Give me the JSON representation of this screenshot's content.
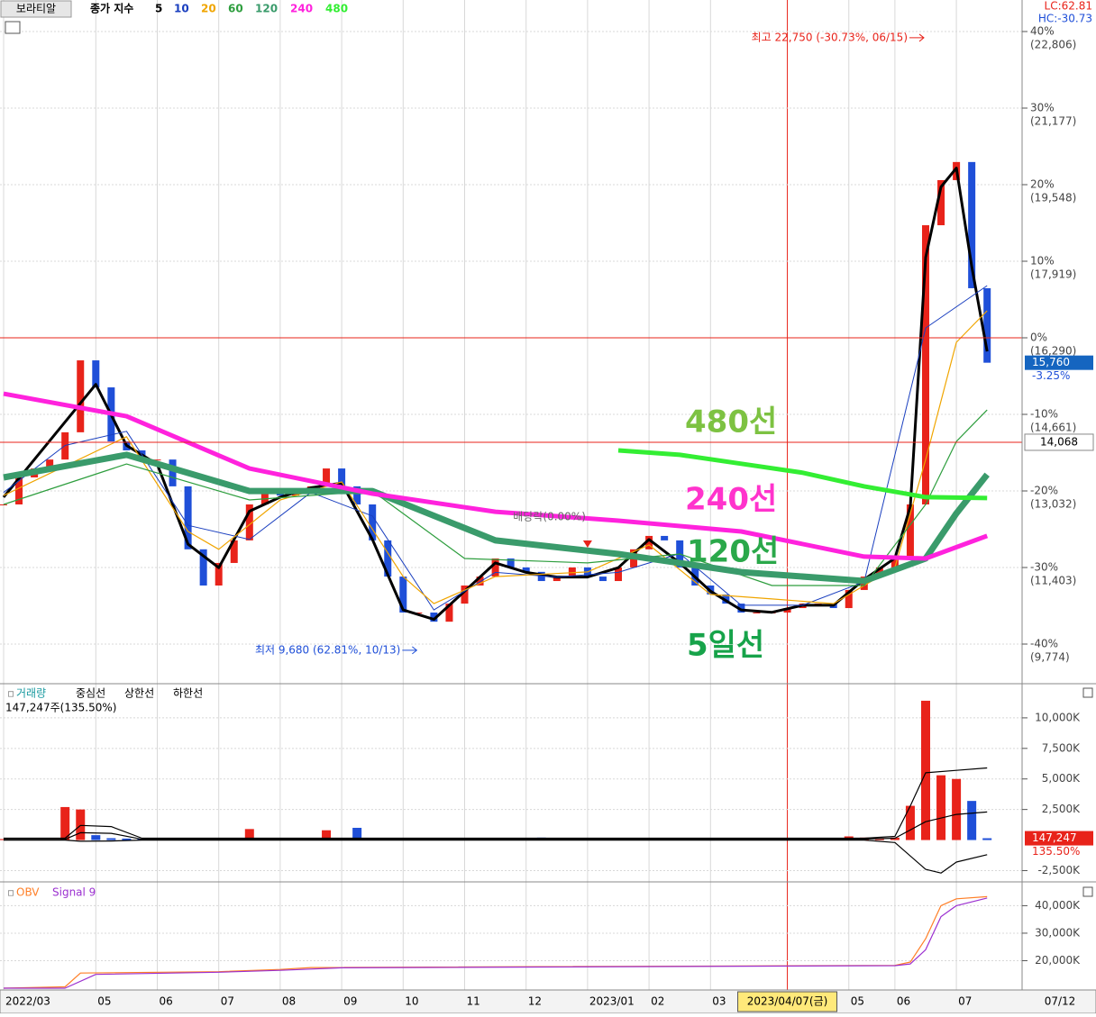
{
  "header": {
    "tool_button": "보라티알",
    "legend_prefix": "종가 지수",
    "lc": "LC:62.81",
    "hc": "HC:-30.73"
  },
  "chart_data": [
    {
      "type": "candlestick",
      "close": [
        12745,
        13320,
        13510,
        13700,
        14280,
        15810,
        15235,
        14085,
        13895,
        13700,
        13700,
        13130,
        11790,
        11020,
        11500,
        11980,
        12745,
        13030,
        12935,
        13030,
        13130,
        13510,
        13130,
        12745,
        11980,
        11210,
        10445,
        10445,
        10250,
        10635,
        11020,
        11210,
        11595,
        11405,
        11310,
        11115,
        11210,
        11405,
        11210,
        11115,
        11405,
        11790,
        12075,
        11980,
        11405,
        11020,
        10830,
        10635,
        10445,
        10445,
        10445,
        10540,
        10635,
        10635,
        10540,
        10925,
        11210,
        11405,
        11595,
        12745,
        18685,
        19645,
        20030,
        17345,
        15760
      ],
      "color_up": "#e8231a",
      "color_down": "#1f4fd8",
      "categories": [
        "2022/03",
        null,
        null,
        null,
        null,
        null,
        "05",
        null,
        null,
        null,
        "06",
        null,
        null,
        null,
        "07",
        null,
        null,
        null,
        "08",
        null,
        null,
        null,
        "09",
        null,
        null,
        null,
        "10",
        null,
        null,
        null,
        "11",
        null,
        null,
        null,
        "12",
        null,
        null,
        null,
        "2023/01",
        null,
        null,
        null,
        "02",
        null,
        null,
        null,
        "03",
        null,
        null,
        null,
        null,
        "2023/04/07(금)",
        null,
        null,
        null,
        "05",
        null,
        null,
        "06",
        null,
        null,
        null,
        "07",
        null,
        null
      ],
      "right_date": "07/12",
      "crosshair_x": 51,
      "series": [
        {
          "name": "5",
          "color": "#000000",
          "x": [
            0,
            4,
            6,
            8,
            10,
            12,
            14,
            16,
            18,
            20,
            22,
            24,
            26,
            28,
            30,
            32,
            34,
            36,
            38,
            40,
            42,
            44,
            46,
            48,
            50,
            52,
            54,
            56,
            58,
            59,
            60,
            61,
            62,
            63,
            64
          ],
          "values": [
            12900,
            14500,
            15300,
            14000,
            13600,
            11900,
            11400,
            12600,
            12900,
            13100,
            13200,
            12000,
            10500,
            10300,
            10900,
            11500,
            11300,
            11200,
            11200,
            11400,
            12000,
            11500,
            10900,
            10500,
            10450,
            10600,
            10600,
            11150,
            11600,
            12700,
            18000,
            19500,
            19900,
            17800,
            16000
          ]
        },
        {
          "name": "10",
          "color": "#1a3fbf",
          "x": [
            0,
            4,
            8,
            12,
            16,
            20,
            24,
            28,
            32,
            36,
            40,
            44,
            48,
            52,
            56,
            60,
            64
          ],
          "values": [
            13000,
            14000,
            14300,
            12300,
            12000,
            13000,
            12500,
            10500,
            11300,
            11200,
            11300,
            11700,
            10600,
            10600,
            11100,
            16500,
            17400
          ]
        },
        {
          "name": "20",
          "color": "#f0a500",
          "x": [
            0,
            8,
            12,
            14,
            18,
            22,
            26,
            28,
            32,
            38,
            42,
            46,
            50,
            54,
            58,
            60,
            62,
            64
          ],
          "values": [
            12935,
            14185,
            12170,
            11790,
            12840,
            13225,
            11210,
            10635,
            11210,
            11310,
            11885,
            10830,
            10735,
            10635,
            11405,
            13700,
            16195,
            16865
          ]
        },
        {
          "name": "60",
          "color": "#2e9e3e",
          "x": [
            0,
            8,
            16,
            24,
            30,
            38,
            44,
            50,
            56,
            60,
            62,
            64
          ],
          "values": [
            12745,
            13605,
            12840,
            13030,
            11595,
            11500,
            11690,
            11020,
            11020,
            12745,
            14085,
            14755
          ]
        },
        {
          "name": "120",
          "color": "#3a9b6b",
          "x": [
            0,
            8,
            16,
            24,
            32,
            40,
            48,
            56,
            60,
            62,
            64
          ],
          "values": [
            13320,
            13800,
            13030,
            13030,
            11980,
            11690,
            11305,
            11115,
            11595,
            12555,
            13380
          ]
        },
        {
          "name": "240",
          "color": "#ff22dd",
          "x": [
            0,
            8,
            16,
            24,
            32,
            40,
            48,
            56,
            60,
            64
          ],
          "values": [
            15100,
            14620,
            13510,
            12975,
            12590,
            12400,
            12170,
            11635,
            11595,
            12075
          ]
        },
        {
          "name": "480",
          "color": "#33ee33",
          "x": [
            40,
            44,
            48,
            52,
            56,
            60,
            64
          ],
          "values": [
            13895,
            13800,
            13610,
            13420,
            13130,
            12900,
            12880
          ]
        }
      ],
      "ylim": [
        8950,
        23477
      ],
      "yticks": [
        {
          "value": 22806,
          "label": "(22,806)"
        },
        {
          "value": 21177,
          "label": "(21,177)"
        },
        {
          "value": 19548,
          "label": "(19,548)"
        },
        {
          "value": 17919,
          "label": "(17,919)"
        },
        {
          "value": 16290,
          "label": "(16,290)"
        },
        {
          "value": 14661,
          "label": "(14,661)"
        },
        {
          "value": 13032,
          "label": "(13,032)"
        },
        {
          "value": 11403,
          "label": "(11,403)"
        },
        {
          "value": 9774,
          "label": "(9,774)"
        }
      ],
      "ytick_pct": [
        "40%",
        "30%",
        "20%",
        "10%",
        "0%",
        "-10%",
        "-20%",
        "-30%",
        "-40%"
      ],
      "hline": {
        "value": 14068,
        "label": "14,068"
      },
      "last": {
        "value": 15760,
        "label": "15,760",
        "change": "-3.25%"
      },
      "high": {
        "x": 60,
        "value": 22750,
        "label": "최고 22,750 (-30.73%, 06/15)"
      },
      "low": {
        "x": 27,
        "value": 9680,
        "label": "최저 9,680 (62.81%, 10/13)"
      },
      "dividend": {
        "x": 38,
        "label": "배당락(0.00%)"
      },
      "annotations": [
        "480선",
        "240선",
        "120선",
        "5일선"
      ]
    },
    {
      "type": "bar",
      "name": "거래량",
      "summary": "147,247주(135.50%)",
      "values": [
        80000,
        60000,
        50000,
        70000,
        2700000,
        2500000,
        400000,
        150000,
        120000,
        90000,
        60000,
        80000,
        70000,
        60000,
        50000,
        60000,
        900000,
        150000,
        100000,
        90000,
        80000,
        800000,
        120000,
        1000000,
        100000,
        80000,
        90000,
        70000,
        60000,
        70000,
        80000,
        60000,
        70000,
        60000,
        80000,
        200000,
        60000,
        50000,
        60000,
        50000,
        70000,
        60000,
        80000,
        90000,
        60000,
        50000,
        40000,
        50000,
        60000,
        40000,
        50000,
        60000,
        40000,
        50000,
        60000,
        300000,
        200000,
        150000,
        200000,
        2800000,
        11400000,
        5300000,
        5000000,
        3200000,
        147247
      ],
      "series": [
        {
          "name": "중심선",
          "color": "#000000",
          "x": [
            0,
            4,
            5,
            7,
            9,
            56,
            58,
            60,
            62,
            64
          ],
          "values": [
            50000,
            60000,
            600000,
            550000,
            60000,
            80000,
            150000,
            1500000,
            2100000,
            2300000
          ]
        },
        {
          "name": "상한선",
          "color": "#000000",
          "x": [
            0,
            4,
            5,
            7,
            9,
            56,
            58,
            59,
            60,
            62,
            64
          ],
          "values": [
            150000,
            150000,
            1200000,
            1100000,
            150000,
            150000,
            300000,
            2800000,
            5500000,
            5700000,
            5900000
          ]
        },
        {
          "name": "하한선",
          "color": "#000000",
          "x": [
            0,
            4,
            5,
            7,
            9,
            56,
            58,
            60,
            61,
            62,
            64
          ],
          "values": [
            0,
            0,
            -100000,
            -80000,
            0,
            0,
            -200000,
            -2400000,
            -2700000,
            -1800000,
            -1200000
          ]
        }
      ],
      "ylim": [
        -3350000,
        12720000
      ],
      "yticks": [
        {
          "value": 10000000,
          "label": "10,000K"
        },
        {
          "value": 7500000,
          "label": "7,500K"
        },
        {
          "value": 5000000,
          "label": "5,000K"
        },
        {
          "value": 2500000,
          "label": "2,500K"
        },
        {
          "value": -2500000,
          "label": "-2,500K"
        }
      ],
      "last": {
        "value": 147247,
        "label": "147,247",
        "change": "135.50%"
      }
    },
    {
      "type": "line",
      "series": [
        {
          "name": "OBV",
          "color": "#ff7f27",
          "x": [
            0,
            4,
            5,
            14,
            18,
            20,
            58,
            59,
            60,
            61,
            62,
            64
          ],
          "values": [
            10000000,
            10500000,
            15500000,
            16000000,
            16800000,
            17500000,
            18300000,
            19500000,
            28000000,
            40000000,
            42500000,
            43300000
          ]
        },
        {
          "name": "Signal 9",
          "color": "#9b30d0",
          "x": [
            0,
            4,
            6,
            14,
            18,
            22,
            58,
            59,
            60,
            61,
            62,
            64
          ],
          "values": [
            10000000,
            10000000,
            15000000,
            15800000,
            16500000,
            17400000,
            18200000,
            18800000,
            24000000,
            36000000,
            40000000,
            42800000
          ]
        }
      ],
      "ylim": [
        9670000,
        48330000
      ],
      "yticks": [
        {
          "value": 40000000,
          "label": "40,000K"
        },
        {
          "value": 30000000,
          "label": "30,000K"
        },
        {
          "value": 20000000,
          "label": "20,000K"
        }
      ]
    }
  ]
}
